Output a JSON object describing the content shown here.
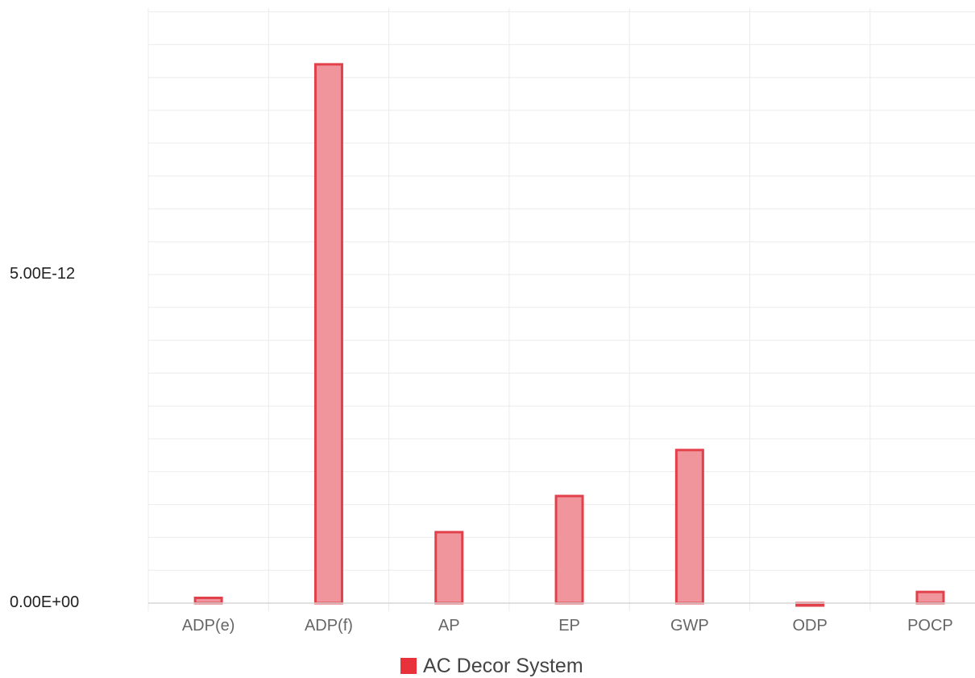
{
  "chart_data": {
    "type": "bar",
    "categories": [
      "ADP(e)",
      "ADP(f)",
      "AP",
      "EP",
      "GWP",
      "ODP",
      "POCP"
    ],
    "series": [
      {
        "name": "AC Decor System",
        "values": [
          8e-14,
          8.2e-12,
          1.08e-12,
          1.63e-12,
          2.33e-12,
          -2e-14,
          1.7e-13
        ]
      }
    ],
    "y_ticks": [
      {
        "value": 0,
        "label": "0.00E+00"
      },
      {
        "value": 5e-12,
        "label": "5.00E-12"
      }
    ],
    "ylim": [
      0,
      9e-12
    ],
    "minor_grid_step": 5e-13,
    "grid": true,
    "legend": "bottom-center",
    "colors": {
      "bar_fill": "#f0959b",
      "bar_stroke": "#e2404a",
      "legend_swatch": "#e8313b",
      "grid": "#ebebeb"
    }
  }
}
